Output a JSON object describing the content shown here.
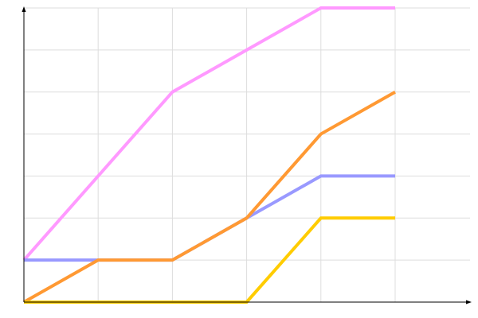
{
  "chart_data": {
    "type": "line",
    "title": "",
    "xlabel": "",
    "ylabel": "",
    "x": [
      0,
      1,
      2,
      3,
      4,
      5
    ],
    "xlim": [
      0,
      6
    ],
    "ylim": [
      0,
      7
    ],
    "grid": true,
    "legend": "none",
    "series": [
      {
        "color": "#ff99ff",
        "values": [
          1,
          3,
          5,
          6,
          7,
          7
        ]
      },
      {
        "color": "#9999ff",
        "values": [
          1,
          1,
          1,
          2,
          3,
          3
        ]
      },
      {
        "color": "#ff9933",
        "values": [
          0,
          1,
          1,
          2,
          4,
          5
        ]
      },
      {
        "color": "#ffcc00",
        "values": [
          0,
          0,
          0,
          0,
          2,
          2
        ]
      }
    ]
  }
}
